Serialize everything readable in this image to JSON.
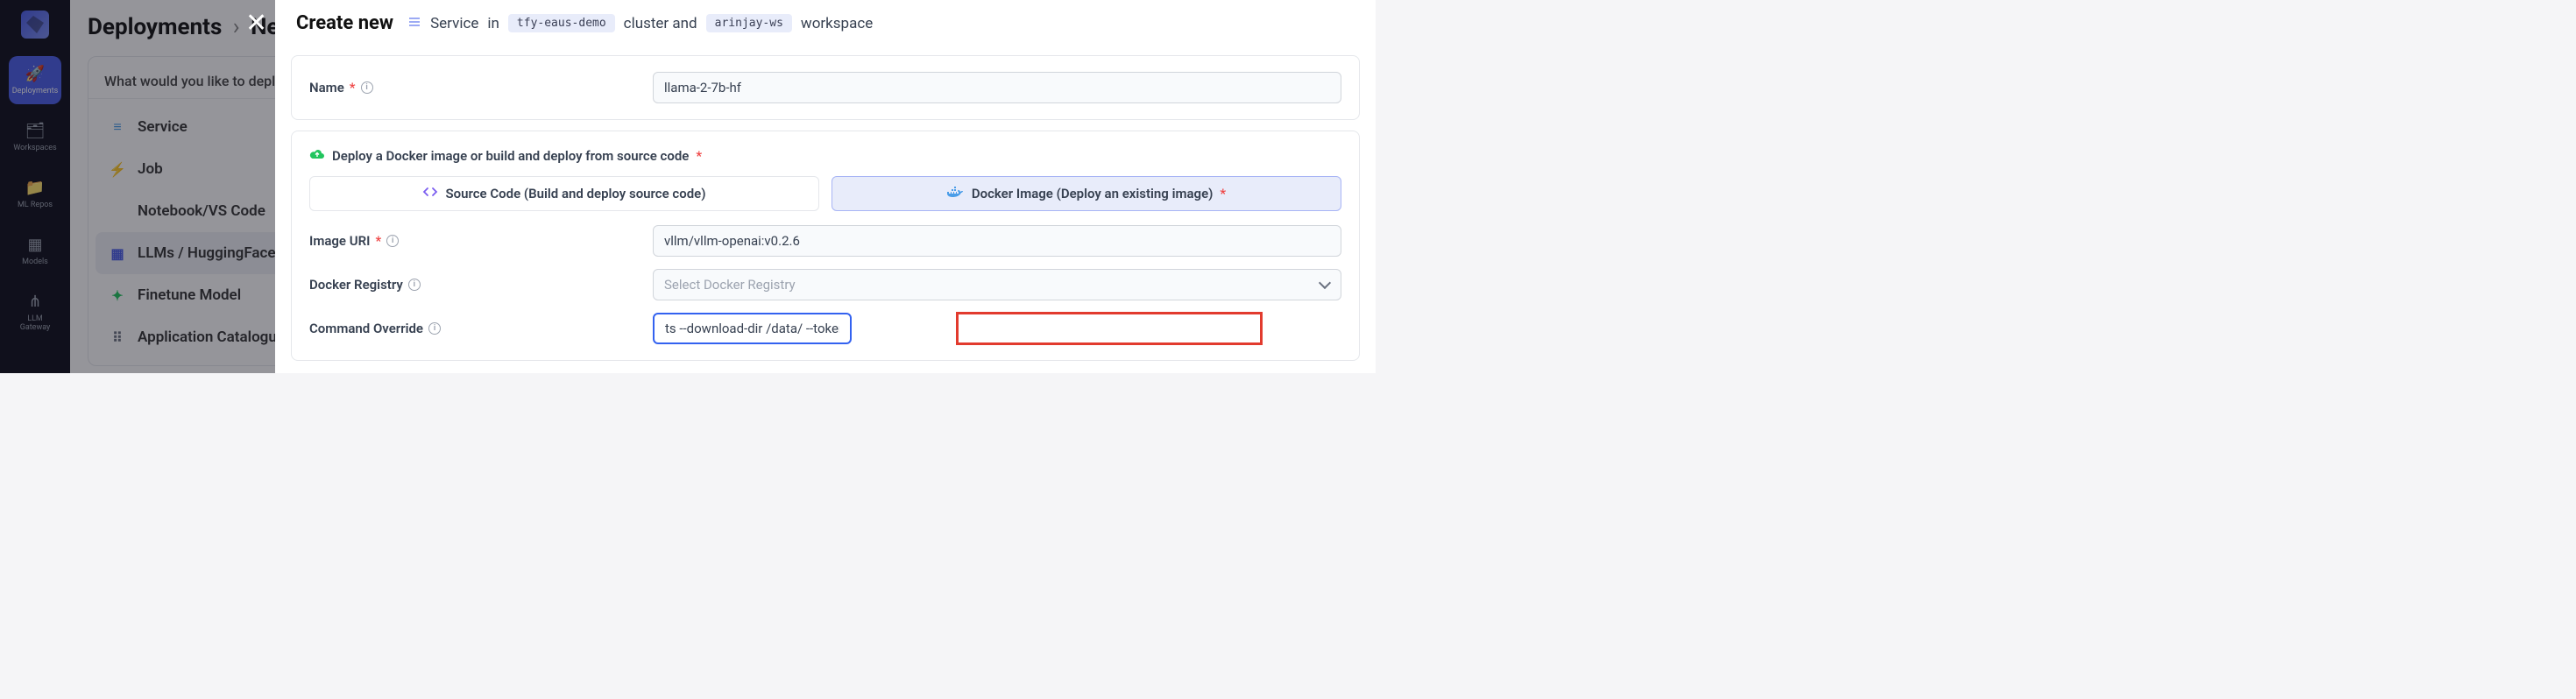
{
  "sidebar": {
    "items": [
      {
        "icon": "🚀",
        "label": "Deployments",
        "active": true
      },
      {
        "icon": "🗂",
        "label": "Workspaces"
      },
      {
        "icon": "📁",
        "label": "ML Repos"
      },
      {
        "icon": "▦",
        "label": "Models"
      },
      {
        "icon": "⋔",
        "label": "LLM Gateway"
      }
    ]
  },
  "background": {
    "breadcrumb1": "Deployments",
    "breadcrumb2": "New",
    "card_header": "What would you like to deploy?",
    "rows": [
      {
        "icon": "≡",
        "label": "Service",
        "icon_color": "#4a9de8"
      },
      {
        "icon": "⚡",
        "label": "Job",
        "icon_color": "#22c55e"
      },
      {
        "icon": "</>",
        "label": "Notebook/VS Code",
        "icon_color": "#4a5de8"
      },
      {
        "icon": "▦",
        "label": "LLMs / HuggingFace Models",
        "icon_color": "#4a5de8",
        "selected": true
      },
      {
        "icon": "✦",
        "label": "Finetune Model",
        "icon_color": "#22c55e"
      },
      {
        "icon": "⠿",
        "label": "Application Catalogue",
        "icon_color": "#6b7280"
      }
    ]
  },
  "modal": {
    "title": "Create new",
    "type_label": "Service",
    "in_word": "in",
    "cluster_pill": "tfy-eaus-demo",
    "cluster_word": "cluster and",
    "workspace_pill": "arinjay-ws",
    "workspace_word": "workspace",
    "name_label": "Name",
    "name_value": "llama-2-7b-hf",
    "deploy_title": "Deploy a Docker image or build and deploy from source code",
    "tab_source_label": "Source Code (Build and deploy source code)",
    "tab_docker_label": "Docker Image (Deploy an existing image)",
    "tab_required_mark": "*",
    "image_uri_label": "Image URI",
    "image_uri_value": "vllm/vllm-openai:v0.2.6",
    "registry_label": "Docker Registry",
    "registry_placeholder": "Select Docker Registry",
    "cmd_label": "Command Override",
    "cmd_value": "ts --download-dir /data/ --tokenizer-mode auto --model $(MODEL_ID) --tokenizer $(MODEL_ID) --trust-remote",
    "highlight": {
      "left_pct": 44.0,
      "width_pct": 44.5
    }
  }
}
